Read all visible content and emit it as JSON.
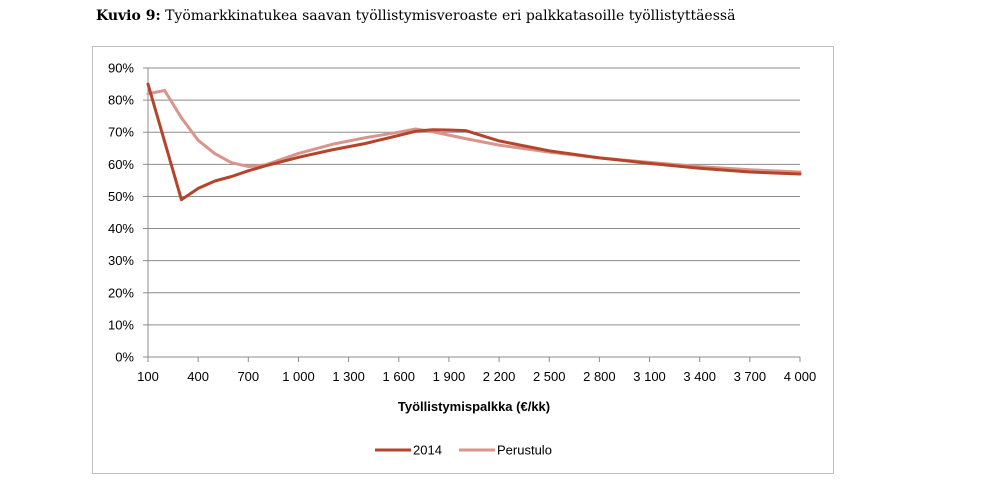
{
  "caption": {
    "lead": "Kuvio 9:",
    "text": " Työmarkkinatukea saavan työllistymisveroaste eri palkkatasoille työllistyttäessä"
  },
  "chart_data": {
    "type": "line",
    "xlabel": "Työllistymispalkka (€/kk)",
    "ylabel": "",
    "xlim": [
      100,
      4000
    ],
    "ylim": [
      0,
      90
    ],
    "x_ticks": [
      100,
      400,
      700,
      1000,
      1300,
      1600,
      1900,
      2200,
      2500,
      2800,
      3100,
      3400,
      3700,
      4000
    ],
    "x_tick_labels": [
      "100",
      "400",
      "700",
      "1 000",
      "1 300",
      "1 600",
      "1 900",
      "2 200",
      "2 500",
      "2 800",
      "3 100",
      "3 400",
      "3 700",
      "4 000"
    ],
    "y_ticks": [
      0,
      10,
      20,
      30,
      40,
      50,
      60,
      70,
      80,
      90
    ],
    "y_tick_labels": [
      "0%",
      "10%",
      "20%",
      "30%",
      "40%",
      "50%",
      "60%",
      "70%",
      "80%",
      "90%"
    ],
    "grid": true,
    "legend": "bottom",
    "series": [
      {
        "name": "2014",
        "color": "#b4452c",
        "x": [
          100,
          300,
          400,
          500,
          600,
          700,
          800,
          1000,
          1200,
          1400,
          1600,
          1700,
          1800,
          1900,
          2000,
          2200,
          2500,
          2800,
          3100,
          3400,
          3700,
          4000
        ],
        "y": [
          85,
          49,
          52.5,
          54.8,
          56.2,
          58,
          59.5,
          62.2,
          64.5,
          66.5,
          69,
          70.3,
          70.8,
          70.7,
          70.5,
          67.3,
          64.2,
          62,
          60.3,
          58.8,
          57.6,
          57
        ]
      },
      {
        "name": "Perustulo",
        "color": "#d9958b",
        "x": [
          100,
          200,
          300,
          400,
          500,
          600,
          700,
          800,
          1000,
          1200,
          1400,
          1600,
          1700,
          1800,
          2000,
          2200,
          2500,
          2800,
          3100,
          3400,
          3700,
          4000
        ],
        "y": [
          82,
          83,
          74.5,
          67.5,
          63.3,
          60.5,
          59.3,
          59.8,
          63.4,
          66.2,
          68.3,
          70,
          71,
          70.2,
          68,
          66,
          63.8,
          62,
          60.6,
          59.3,
          58.3,
          57.6
        ]
      }
    ]
  }
}
